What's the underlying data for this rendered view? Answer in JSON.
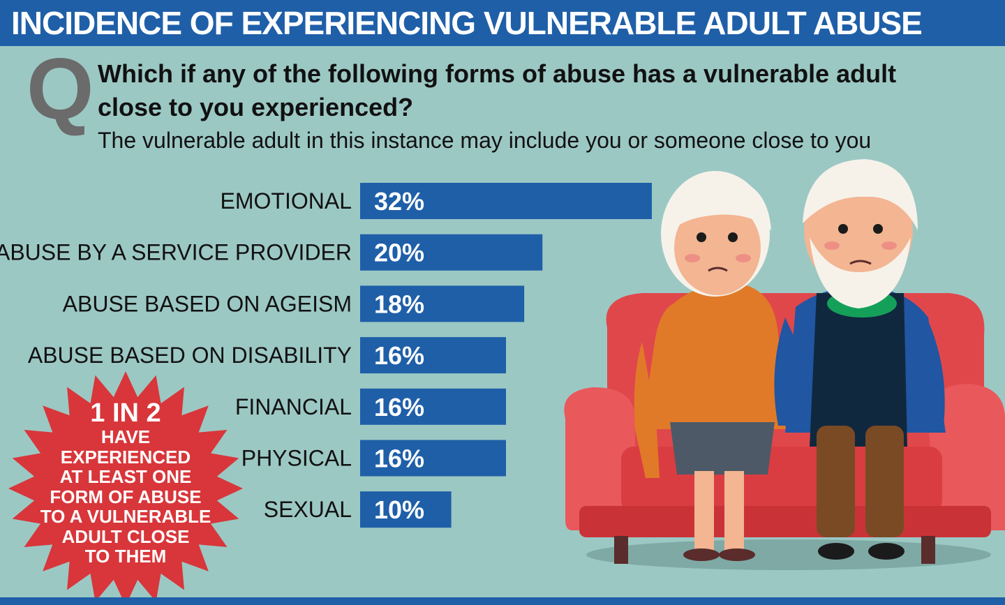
{
  "header": {
    "title": "INCIDENCE OF EXPERIENCING VULNERABLE ADULT ABUSE"
  },
  "question": {
    "letter": "Q",
    "text": "Which if any of the following forms of abuse has a vulnerable adult close to you experienced?",
    "subtitle": "The vulnerable adult in this instance may include you or someone close to you"
  },
  "chart_data": {
    "type": "bar",
    "orientation": "horizontal",
    "categories": [
      "EMOTIONAL",
      "ABUSE BY A SERVICE PROVIDER",
      "ABUSE BASED ON AGEISM",
      "ABUSE BASED ON DISABILITY",
      "FINANCIAL",
      "PHYSICAL",
      "SEXUAL"
    ],
    "values": [
      32,
      20,
      18,
      16,
      16,
      16,
      10
    ],
    "value_labels": [
      "32%",
      "20%",
      "18%",
      "16%",
      "16%",
      "16%",
      "10%"
    ],
    "unit": "%",
    "xlim": [
      0,
      32
    ],
    "grid": false,
    "bar_color": "#1f5fa8"
  },
  "callout": {
    "big": "1 IN 2",
    "lines": [
      "HAVE",
      "EXPERIENCED",
      "AT LEAST ONE",
      "FORM OF ABUSE",
      "TO A VULNERABLE",
      "ADULT CLOSE",
      "TO THEM"
    ],
    "color": "#d8363a"
  },
  "illustration": {
    "subject": "elderly-couple-on-sofa"
  },
  "colors": {
    "header": "#1f5fa8",
    "background": "#9cc8c4",
    "bar": "#1f5fa8",
    "burst": "#d8363a",
    "q_letter": "#6b6b6b"
  }
}
